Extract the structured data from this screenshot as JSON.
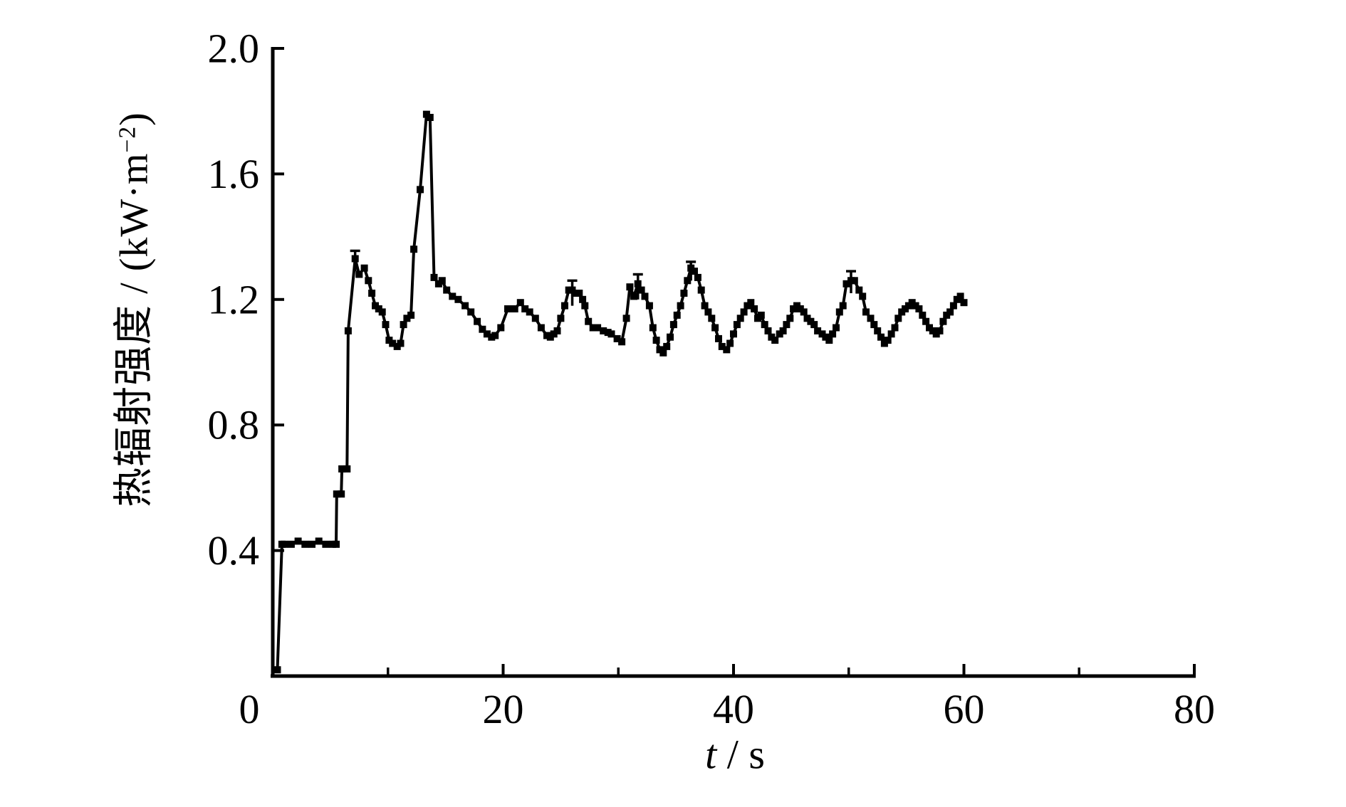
{
  "figure": {
    "background": "#ffffff",
    "title": ""
  },
  "chart_data": {
    "type": "line",
    "title": "",
    "xlabel": {
      "variable": "t",
      "separator": " / ",
      "unit": "s"
    },
    "ylabel": {
      "prefix": "热辐射强度 / (kW·m",
      "superscript": "−2",
      "suffix": ")"
    },
    "xlim": [
      0,
      80
    ],
    "ylim": [
      0,
      2.0
    ],
    "grid": false,
    "legend": "none",
    "line_color": "#000000",
    "marker": "filled-square",
    "marker_size": 10,
    "x_axis": {
      "ticks": [
        {
          "v": 0,
          "label": "0",
          "major": true,
          "dx": -33
        },
        {
          "v": 10,
          "major": false
        },
        {
          "v": 20,
          "label": "20",
          "major": true
        },
        {
          "v": 30,
          "major": false
        },
        {
          "v": 40,
          "label": "40",
          "major": true
        },
        {
          "v": 50,
          "major": false
        },
        {
          "v": 60,
          "label": "60",
          "major": true
        },
        {
          "v": 70,
          "major": false
        },
        {
          "v": 80,
          "label": "80",
          "major": true
        }
      ]
    },
    "y_axis": {
      "ticks": [
        {
          "v": 0.4,
          "label": "0.4"
        },
        {
          "v": 0.8,
          "label": "0.8"
        },
        {
          "v": 1.2,
          "label": "1.2"
        },
        {
          "v": 1.6,
          "label": "1.6"
        },
        {
          "v": 2.0,
          "label": "2.0"
        }
      ]
    },
    "series": [
      {
        "name": "热辐射强度",
        "points": [
          [
            0.4,
            0.02
          ],
          [
            0.8,
            0.42
          ],
          [
            1.0,
            0.42
          ],
          [
            1.6,
            0.42
          ],
          [
            2.2,
            0.43
          ],
          [
            2.8,
            0.42
          ],
          [
            3.4,
            0.42
          ],
          [
            4.0,
            0.43
          ],
          [
            4.6,
            0.42
          ],
          [
            5.2,
            0.42
          ],
          [
            5.5,
            0.42
          ],
          [
            5.55,
            0.58
          ],
          [
            5.95,
            0.58
          ],
          [
            6.0,
            0.66
          ],
          [
            6.45,
            0.66
          ],
          [
            6.55,
            1.1
          ],
          [
            7.15,
            1.33
          ],
          [
            7.5,
            1.28
          ],
          [
            7.95,
            1.3
          ],
          [
            8.3,
            1.26
          ],
          [
            8.6,
            1.22
          ],
          [
            8.9,
            1.18
          ],
          [
            9.2,
            1.17
          ],
          [
            9.5,
            1.16
          ],
          [
            9.8,
            1.12
          ],
          [
            10.1,
            1.07
          ],
          [
            10.4,
            1.06
          ],
          [
            10.8,
            1.05
          ],
          [
            11.1,
            1.06
          ],
          [
            11.35,
            1.12
          ],
          [
            11.65,
            1.14
          ],
          [
            12.0,
            1.15
          ],
          [
            12.25,
            1.36
          ],
          [
            12.8,
            1.55
          ],
          [
            13.35,
            1.79
          ],
          [
            13.65,
            1.78
          ],
          [
            14.0,
            1.27
          ],
          [
            14.4,
            1.25
          ],
          [
            14.7,
            1.26
          ],
          [
            15.1,
            1.23
          ],
          [
            15.6,
            1.21
          ],
          [
            16.1,
            1.2
          ],
          [
            16.7,
            1.18
          ],
          [
            17.2,
            1.16
          ],
          [
            17.75,
            1.13
          ],
          [
            18.2,
            1.105
          ],
          [
            18.6,
            1.09
          ],
          [
            19.0,
            1.08
          ],
          [
            19.3,
            1.085
          ],
          [
            19.8,
            1.11
          ],
          [
            20.4,
            1.17
          ],
          [
            21.0,
            1.17
          ],
          [
            21.5,
            1.19
          ],
          [
            21.9,
            1.17
          ],
          [
            22.3,
            1.16
          ],
          [
            22.8,
            1.14
          ],
          [
            23.3,
            1.11
          ],
          [
            23.8,
            1.085
          ],
          [
            24.1,
            1.08
          ],
          [
            24.4,
            1.09
          ],
          [
            24.7,
            1.1
          ],
          [
            25.0,
            1.14
          ],
          [
            25.35,
            1.18
          ],
          [
            25.7,
            1.23
          ],
          [
            26.0,
            1.23
          ],
          [
            26.3,
            1.22
          ],
          [
            26.6,
            1.22
          ],
          [
            26.9,
            1.2
          ],
          [
            27.1,
            1.18
          ],
          [
            27.4,
            1.13
          ],
          [
            27.8,
            1.11
          ],
          [
            28.2,
            1.11
          ],
          [
            28.7,
            1.1
          ],
          [
            29.1,
            1.095
          ],
          [
            29.4,
            1.09
          ],
          [
            29.9,
            1.075
          ],
          [
            30.3,
            1.065
          ],
          [
            30.7,
            1.14
          ],
          [
            31.0,
            1.24
          ],
          [
            31.35,
            1.21
          ],
          [
            31.7,
            1.25
          ],
          [
            32.0,
            1.23
          ],
          [
            32.3,
            1.21
          ],
          [
            32.7,
            1.18
          ],
          [
            33.0,
            1.11
          ],
          [
            33.3,
            1.07
          ],
          [
            33.6,
            1.04
          ],
          [
            33.9,
            1.03
          ],
          [
            34.2,
            1.05
          ],
          [
            34.5,
            1.08
          ],
          [
            34.8,
            1.12
          ],
          [
            35.1,
            1.15
          ],
          [
            35.4,
            1.18
          ],
          [
            35.7,
            1.22
          ],
          [
            36.0,
            1.26
          ],
          [
            36.3,
            1.3
          ],
          [
            36.6,
            1.29
          ],
          [
            36.9,
            1.27
          ],
          [
            37.2,
            1.23
          ],
          [
            37.5,
            1.18
          ],
          [
            37.8,
            1.16
          ],
          [
            38.1,
            1.14
          ],
          [
            38.4,
            1.11
          ],
          [
            38.7,
            1.075
          ],
          [
            39.0,
            1.05
          ],
          [
            39.4,
            1.04
          ],
          [
            39.7,
            1.06
          ],
          [
            40.0,
            1.09
          ],
          [
            40.3,
            1.12
          ],
          [
            40.6,
            1.14
          ],
          [
            40.9,
            1.16
          ],
          [
            41.2,
            1.18
          ],
          [
            41.5,
            1.19
          ],
          [
            41.8,
            1.17
          ],
          [
            42.1,
            1.14
          ],
          [
            42.4,
            1.15
          ],
          [
            42.7,
            1.12
          ],
          [
            43.0,
            1.1
          ],
          [
            43.3,
            1.08
          ],
          [
            43.6,
            1.07
          ],
          [
            44.0,
            1.09
          ],
          [
            44.3,
            1.1
          ],
          [
            44.6,
            1.12
          ],
          [
            44.9,
            1.14
          ],
          [
            45.2,
            1.17
          ],
          [
            45.5,
            1.18
          ],
          [
            45.8,
            1.17
          ],
          [
            46.1,
            1.16
          ],
          [
            46.4,
            1.14
          ],
          [
            46.7,
            1.13
          ],
          [
            47.0,
            1.12
          ],
          [
            47.3,
            1.1
          ],
          [
            47.7,
            1.09
          ],
          [
            48.0,
            1.08
          ],
          [
            48.3,
            1.07
          ],
          [
            48.6,
            1.09
          ],
          [
            48.9,
            1.11
          ],
          [
            49.2,
            1.16
          ],
          [
            49.5,
            1.18
          ],
          [
            49.8,
            1.25
          ],
          [
            50.2,
            1.26
          ],
          [
            50.5,
            1.26
          ],
          [
            50.9,
            1.23
          ],
          [
            51.2,
            1.21
          ],
          [
            51.5,
            1.16
          ],
          [
            51.9,
            1.14
          ],
          [
            52.2,
            1.12
          ],
          [
            52.5,
            1.1
          ],
          [
            52.8,
            1.08
          ],
          [
            53.1,
            1.06
          ],
          [
            53.4,
            1.07
          ],
          [
            53.7,
            1.09
          ],
          [
            54.0,
            1.11
          ],
          [
            54.3,
            1.14
          ],
          [
            54.6,
            1.16
          ],
          [
            54.9,
            1.17
          ],
          [
            55.2,
            1.18
          ],
          [
            55.5,
            1.19
          ],
          [
            55.8,
            1.18
          ],
          [
            56.1,
            1.17
          ],
          [
            56.4,
            1.15
          ],
          [
            56.7,
            1.13
          ],
          [
            57.0,
            1.11
          ],
          [
            57.3,
            1.1
          ],
          [
            57.6,
            1.09
          ],
          [
            57.9,
            1.1
          ],
          [
            58.2,
            1.13
          ],
          [
            58.5,
            1.15
          ],
          [
            58.8,
            1.16
          ],
          [
            59.1,
            1.18
          ],
          [
            59.4,
            1.2
          ],
          [
            59.7,
            1.21
          ],
          [
            60.0,
            1.19
          ]
        ]
      }
    ],
    "error_bars": [
      {
        "t": 7.15,
        "lo": 1.29,
        "hi": 1.355
      },
      {
        "t": 26.0,
        "lo": 1.18,
        "hi": 1.26
      },
      {
        "t": 31.7,
        "lo": 1.2,
        "hi": 1.28
      },
      {
        "t": 36.3,
        "lo": 1.26,
        "hi": 1.32
      },
      {
        "t": 50.2,
        "lo": 1.22,
        "hi": 1.29
      }
    ]
  }
}
